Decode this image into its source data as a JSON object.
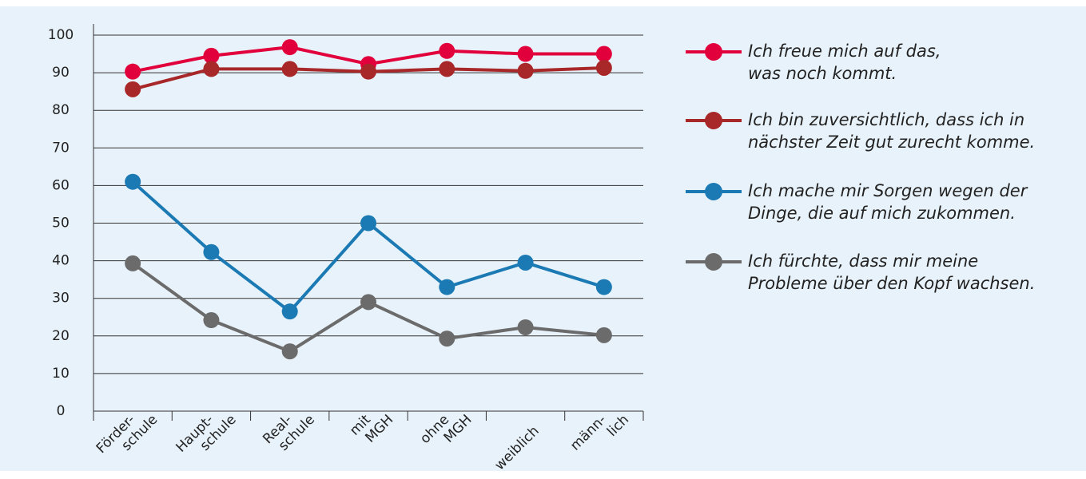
{
  "chart_data": {
    "type": "line",
    "categories": [
      [
        "Förder-",
        "schule"
      ],
      [
        "Haupt-",
        "schule"
      ],
      [
        "Real-",
        "schule"
      ],
      [
        "mit",
        "MGH"
      ],
      [
        "ohne",
        "MGH"
      ],
      [
        "weiblich"
      ],
      [
        "männ-",
        "lich"
      ]
    ],
    "series": [
      {
        "name": [
          "Ich freue mich auf das,",
          "was noch kommt."
        ],
        "color": "#e2003c",
        "values": [
          90.3,
          94.5,
          96.8,
          92.3,
          95.8,
          95,
          95
        ]
      },
      {
        "name": [
          "Ich bin zuversichtlich, dass ich in",
          "nächster Zeit gut zurecht komme."
        ],
        "color": "#a8282a",
        "values": [
          85.6,
          91,
          91,
          90.3,
          91,
          90.5,
          91.3
        ]
      },
      {
        "name": [
          "Ich mache mir Sorgen wegen der",
          "Dinge, die auf mich zukommen."
        ],
        "color": "#1b7ab3",
        "values": [
          61,
          42.3,
          26.5,
          50,
          33,
          39.5,
          33
        ]
      },
      {
        "name": [
          "Ich fürchte, dass mir meine",
          "Probleme über den Kopf wachsen."
        ],
        "color": "#6b6b6b",
        "values": [
          39.3,
          24.2,
          15.9,
          29,
          19.3,
          22.3,
          20.2
        ]
      }
    ],
    "ylim": [
      0,
      100
    ],
    "yticks": [
      0,
      10,
      20,
      30,
      40,
      50,
      60,
      70,
      80,
      90,
      100
    ],
    "grid": true,
    "legend": "right"
  }
}
